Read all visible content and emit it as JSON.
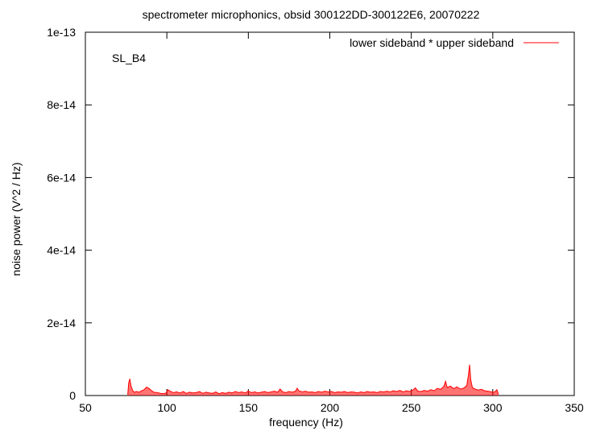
{
  "chart_data": {
    "type": "line",
    "title": "spectrometer microphonics, obsid 300122DD-300122E6, 20070222",
    "xlabel": "frequency (Hz)",
    "ylabel": "noise power (V^2 / Hz)",
    "annotation": "SL_B4",
    "xlim": [
      50,
      350
    ],
    "ylim": [
      0,
      1e-13
    ],
    "x_ticks": [
      50,
      100,
      150,
      200,
      250,
      300,
      350
    ],
    "x_tick_labels": [
      "50",
      "100",
      "150",
      "200",
      "250",
      "300",
      "350"
    ],
    "y_ticks": [
      0,
      2e-14,
      4e-14,
      6e-14,
      8e-14,
      1e-13
    ],
    "y_tick_labels": [
      "0",
      "2e-14",
      "4e-14",
      "6e-14",
      "8e-14",
      "1e-13"
    ],
    "legend_position": "top-right",
    "grid": false,
    "series": [
      {
        "name": "lower sideband * upper sideband",
        "color": "#ff0000",
        "x": [
          76.0,
          76.6,
          77.3,
          78.0,
          79.0,
          80.0,
          81.5,
          83.0,
          84.5,
          86.0,
          87.5,
          89.0,
          90.5,
          92.0,
          94.0,
          96.0,
          98.0,
          99.5,
          100.5,
          102.0,
          104.0,
          106.0,
          108.0,
          110.0,
          112.0,
          114.0,
          116.0,
          118.0,
          120.0,
          122.0,
          124.0,
          126.0,
          128.0,
          130.0,
          132.0,
          134.0,
          136.0,
          138.0,
          140.0,
          142.0,
          144.0,
          146.0,
          148.0,
          150.0,
          152.0,
          154.0,
          156.0,
          158.0,
          160.0,
          162.0,
          164.0,
          166.0,
          168.0,
          169.5,
          171.0,
          173.0,
          175.0,
          177.0,
          179.0,
          180.0,
          181.0,
          183.0,
          185.0,
          187.0,
          189.0,
          191.0,
          193.0,
          195.0,
          197.0,
          199.0,
          201.0,
          203.0,
          205.0,
          207.0,
          209.0,
          211.0,
          213.0,
          215.0,
          217.0,
          219.0,
          221.0,
          223.0,
          225.0,
          227.0,
          229.0,
          231.0,
          233.0,
          235.0,
          237.0,
          239.0,
          241.0,
          243.0,
          245.0,
          247.0,
          249.0,
          251.0,
          252.5,
          254.0,
          256.0,
          258.0,
          260.0,
          262.0,
          264.0,
          266.0,
          268.0,
          270.0,
          271.0,
          272.0,
          274.0,
          276.0,
          278.0,
          280.0,
          282.0,
          284.0,
          285.0,
          285.8,
          286.5,
          287.5,
          289.0,
          291.0,
          293.0,
          295.0,
          297.0,
          299.0,
          301.0,
          302.5,
          303.5
        ],
        "y": [
          2e-16,
          3.5e-15,
          4.6e-15,
          2.6e-15,
          1.4e-15,
          9e-16,
          1.1e-15,
          9e-16,
          1.3e-15,
          1.6e-15,
          2.3e-15,
          2e-15,
          1.4e-15,
          9e-16,
          8e-16,
          6e-16,
          5e-16,
          7e-16,
          1.6e-15,
          1.2e-15,
          8e-16,
          1e-15,
          7e-16,
          1.1e-15,
          6e-16,
          9e-16,
          7e-16,
          8e-16,
          1.1e-15,
          6e-16,
          9e-16,
          7e-16,
          6e-16,
          1e-15,
          5e-16,
          8e-16,
          6e-16,
          9e-16,
          7e-16,
          1.1e-15,
          8e-16,
          1e-15,
          7e-16,
          1.2e-15,
          8e-16,
          1e-15,
          7e-16,
          9e-16,
          1.1e-15,
          8e-16,
          1e-15,
          1.2e-15,
          9e-16,
          1.8e-15,
          1e-15,
          8e-16,
          1.1e-15,
          9e-16,
          1.2e-15,
          2e-15,
          1.3e-15,
          1e-15,
          1.2e-15,
          9e-16,
          1e-15,
          8e-16,
          1.1e-15,
          9e-16,
          1.2e-15,
          1e-15,
          1.1e-15,
          8e-16,
          1e-15,
          9e-16,
          1.1e-15,
          8e-16,
          1e-15,
          9e-16,
          7e-16,
          1e-15,
          8e-16,
          1.1e-15,
          9e-16,
          1e-15,
          8e-16,
          1.1e-15,
          1e-15,
          1.2e-15,
          1e-15,
          1.3e-15,
          1.1e-15,
          1.4e-15,
          1e-15,
          1.3e-15,
          1.1e-15,
          1.5e-15,
          2.1e-15,
          1.2e-15,
          1.1e-15,
          1.4e-15,
          1.2e-15,
          1.6e-15,
          1.3e-15,
          2e-15,
          1.7e-15,
          2.5e-15,
          3.9e-15,
          2.2e-15,
          2.6e-15,
          1.9e-15,
          2.4e-15,
          1.8e-15,
          2e-15,
          2.7e-15,
          5.5e-15,
          8.5e-15,
          4.3e-15,
          2.2e-15,
          1.8e-15,
          1.5e-15,
          1.7e-15,
          1.3e-15,
          1.2e-15,
          1e-15,
          9e-16,
          1.6e-15,
          3e-16
        ]
      }
    ]
  }
}
